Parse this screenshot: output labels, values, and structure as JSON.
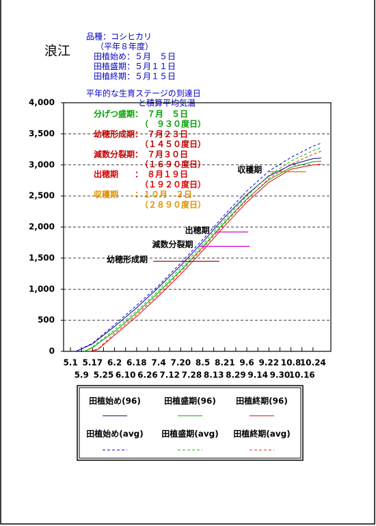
{
  "chart_data": {
    "type": "line",
    "title": "浪江",
    "info": [
      "品種：コシヒカリ",
      "（平年８年度）",
      "田植始め：５月　５日",
      "田植盛期：５月１１日",
      "田植終期：５月１５日"
    ],
    "subtitle": [
      "平年的な生育ステージの到達日",
      "と積算平均気温"
    ],
    "stage_notes": [
      {
        "text": "分げつ盛期：　７月　５日",
        "color": "#00a000"
      },
      {
        "text": "（　９３０度日）",
        "color": "#00a000"
      },
      {
        "text": "幼穂形成期：　７月２３日",
        "color": "#c00000"
      },
      {
        "text": "（１４５０度日）",
        "color": "#c00000"
      },
      {
        "text": "減数分裂期：　７月３０日",
        "color": "#c00000"
      },
      {
        "text": "（１６９０度日）",
        "color": "#c00000"
      },
      {
        "text": "出穂期　　：　８月１９日",
        "color": "#e00000"
      },
      {
        "text": "（１９２０度日）",
        "color": "#e00000"
      },
      {
        "text": "収穫期　　：１０月　３日",
        "color": "#e09000"
      },
      {
        "text": "（２８９０度日）",
        "color": "#e09000"
      }
    ],
    "stage_lines": [
      {
        "label": "幼穂形成期",
        "value": 1450,
        "xrange": [
          60,
          108
        ],
        "color": "#a00000"
      },
      {
        "label": "減数分裂期",
        "value": 1690,
        "xrange": [
          93,
          130
        ],
        "color": "#d000d0"
      },
      {
        "label": "出穂期",
        "value": 1920,
        "xrange": [
          105,
          129
        ],
        "color": "#d000d0"
      },
      {
        "label": "収穫期",
        "value": 2890,
        "xrange": [
          143,
          171
        ],
        "color": "#b08000"
      }
    ],
    "xlim": [
      -5,
      189
    ],
    "xticks": [
      {
        "value": 0,
        "label": "5.1"
      },
      {
        "value": 8,
        "label": "5.9"
      },
      {
        "value": 16,
        "label": "5.17"
      },
      {
        "value": 24,
        "label": "5.25"
      },
      {
        "value": 32,
        "label": "6.2"
      },
      {
        "value": 40,
        "label": "6.10"
      },
      {
        "value": 48,
        "label": "6.18"
      },
      {
        "value": 56,
        "label": "6.26"
      },
      {
        "value": 64,
        "label": "7.4"
      },
      {
        "value": 72,
        "label": "7.12"
      },
      {
        "value": 80,
        "label": "7.20"
      },
      {
        "value": 88,
        "label": "7.28"
      },
      {
        "value": 96,
        "label": "8.5"
      },
      {
        "value": 104,
        "label": "8.13"
      },
      {
        "value": 112,
        "label": "8.21"
      },
      {
        "value": 120,
        "label": "8.29"
      },
      {
        "value": 128,
        "label": "9.6"
      },
      {
        "value": 136,
        "label": "9.14"
      },
      {
        "value": 144,
        "label": "9.22"
      },
      {
        "value": 152,
        "label": "9.30"
      },
      {
        "value": 160,
        "label": "10.8"
      },
      {
        "value": 168,
        "label": "10.16"
      },
      {
        "value": 176,
        "label": "10.24"
      }
    ],
    "ylim": [
      0,
      4000
    ],
    "yticks": [
      0,
      {
        "value": 500,
        "label": "500"
      },
      {
        "value": 1000,
        "label": "1,000"
      },
      {
        "value": 1500,
        "label": "1,500"
      },
      {
        "value": 2000,
        "label": "2,000"
      },
      {
        "value": 2500,
        "label": "2,500"
      },
      {
        "value": 3000,
        "label": "3,000"
      },
      {
        "value": 3500,
        "label": "3,500"
      },
      {
        "value": 4000,
        "label": "4,000"
      }
    ],
    "grid": true,
    "series": [
      {
        "name": "田植始め(96)",
        "color": "#000080",
        "dash": false,
        "x": [
          4,
          16,
          32,
          48,
          64,
          80,
          96,
          112,
          128,
          144,
          160,
          176,
          182
        ],
        "values": [
          0,
          120,
          400,
          700,
          1030,
          1380,
          1760,
          2160,
          2520,
          2820,
          3000,
          3100,
          3110
        ]
      },
      {
        "name": "田植盛期(96)",
        "color": "#00a000",
        "dash": false,
        "x": [
          10,
          16,
          32,
          48,
          64,
          80,
          96,
          112,
          128,
          144,
          160,
          176,
          182
        ],
        "values": [
          0,
          60,
          320,
          620,
          950,
          1300,
          1680,
          2080,
          2450,
          2760,
          2960,
          3050,
          3060
        ]
      },
      {
        "name": "田植終期(96)",
        "color": "#e00000",
        "dash": false,
        "x": [
          14,
          20,
          32,
          48,
          64,
          80,
          96,
          112,
          128,
          144,
          160,
          176,
          182
        ],
        "values": [
          0,
          30,
          260,
          560,
          890,
          1240,
          1620,
          2020,
          2400,
          2720,
          2930,
          3000,
          3010
        ]
      },
      {
        "name": "田植始め(avg)",
        "color": "#0000e0",
        "dash": true,
        "x": [
          4,
          16,
          32,
          48,
          64,
          80,
          96,
          112,
          128,
          144,
          160,
          176,
          182
        ],
        "values": [
          0,
          130,
          430,
          740,
          1060,
          1420,
          1800,
          2200,
          2580,
          2900,
          3120,
          3300,
          3350
        ]
      },
      {
        "name": "田植盛期(avg)",
        "color": "#00c000",
        "dash": true,
        "x": [
          10,
          16,
          32,
          48,
          64,
          80,
          96,
          112,
          128,
          144,
          160,
          176,
          182
        ],
        "values": [
          0,
          70,
          350,
          650,
          980,
          1340,
          1720,
          2120,
          2500,
          2830,
          3060,
          3230,
          3280
        ]
      },
      {
        "name": "田植終期(avg)",
        "color": "#ff2020",
        "dash": true,
        "x": [
          14,
          20,
          32,
          48,
          64,
          80,
          96,
          112,
          128,
          144,
          160,
          176,
          182
        ],
        "values": [
          0,
          40,
          290,
          590,
          920,
          1280,
          1660,
          2060,
          2440,
          2780,
          3010,
          3170,
          3220
        ]
      }
    ]
  }
}
